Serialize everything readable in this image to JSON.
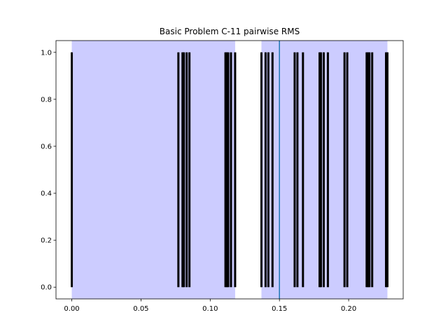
{
  "chart_data": {
    "type": "bar",
    "title": "Basic Problem C-11 pairwise RMS",
    "xlabel": "",
    "ylabel": "",
    "xlim": [
      -0.0114,
      0.2394
    ],
    "ylim": [
      -0.05,
      1.05
    ],
    "x_ticks": [
      0.0,
      0.05,
      0.1,
      0.15,
      0.2
    ],
    "x_tick_labels": [
      "0.00",
      "0.05",
      "0.10",
      "0.15",
      "0.20"
    ],
    "y_ticks": [
      0.0,
      0.2,
      0.4,
      0.6,
      0.8,
      1.0
    ],
    "y_tick_labels": [
      "0.0",
      "0.2",
      "0.4",
      "0.6",
      "0.8",
      "1.0"
    ],
    "grid": false,
    "shaded_spans": [
      {
        "from": 0.0,
        "to": 0.118,
        "color": "#ccccff"
      },
      {
        "from": 0.137,
        "to": 0.228,
        "color": "#ccccff"
      }
    ],
    "vertical_line": {
      "x": 0.15,
      "color": "#1f77b4"
    },
    "event_color": "#000000",
    "events": [
      0.0,
      0.077,
      0.08,
      0.081,
      0.083,
      0.085,
      0.111,
      0.112,
      0.113,
      0.115,
      0.118,
      0.137,
      0.14,
      0.142,
      0.145,
      0.161,
      0.163,
      0.167,
      0.179,
      0.18,
      0.182,
      0.185,
      0.197,
      0.199,
      0.213,
      0.214,
      0.215,
      0.217,
      0.227,
      0.228
    ],
    "event_y": [
      0.0,
      1.0
    ]
  }
}
